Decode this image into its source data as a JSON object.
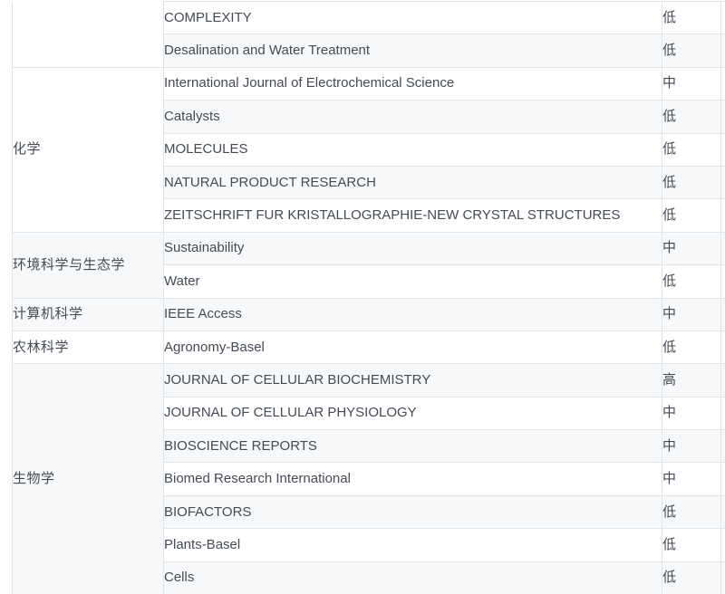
{
  "colors": {
    "row_alt_background": "#f7f8f9",
    "row_background": "#ffffff",
    "border": "#e2e5e8",
    "text": "#454b55"
  },
  "levels_legend": [
    "低",
    "中",
    "高"
  ],
  "table": {
    "groups": [
      {
        "category": "",
        "rows": [
          {
            "journal": "COMPLEXITY",
            "level": "低"
          },
          {
            "journal": "Desalination and Water Treatment",
            "level": "低"
          }
        ]
      },
      {
        "category": "化学",
        "rows": [
          {
            "journal": "International Journal of Electrochemical Science",
            "level": "中"
          },
          {
            "journal": "Catalysts",
            "level": "低"
          },
          {
            "journal": "MOLECULES",
            "level": "低"
          },
          {
            "journal": "NATURAL PRODUCT RESEARCH",
            "level": "低"
          },
          {
            "journal": "ZEITSCHRIFT FUR KRISTALLOGRAPHIE-NEW CRYSTAL STRUCTURES",
            "level": "低"
          }
        ]
      },
      {
        "category": "环境科学与生态学",
        "rows": [
          {
            "journal": "Sustainability",
            "level": "中"
          },
          {
            "journal": "Water",
            "level": "低"
          }
        ]
      },
      {
        "category": "计算机科学",
        "rows": [
          {
            "journal": "IEEE Access",
            "level": "中"
          }
        ]
      },
      {
        "category": "农林科学",
        "rows": [
          {
            "journal": "Agronomy-Basel",
            "level": "低"
          }
        ]
      },
      {
        "category": "生物学",
        "rows": [
          {
            "journal": "JOURNAL OF CELLULAR BIOCHEMISTRY",
            "level": "高"
          },
          {
            "journal": "JOURNAL OF CELLULAR PHYSIOLOGY",
            "level": "中"
          },
          {
            "journal": "BIOSCIENCE REPORTS",
            "level": "中"
          },
          {
            "journal": "Biomed Research International",
            "level": "中"
          },
          {
            "journal": "BIOFACTORS",
            "level": "低"
          },
          {
            "journal": "Plants-Basel",
            "level": "低"
          },
          {
            "journal": "Cells",
            "level": "低"
          }
        ]
      }
    ]
  }
}
